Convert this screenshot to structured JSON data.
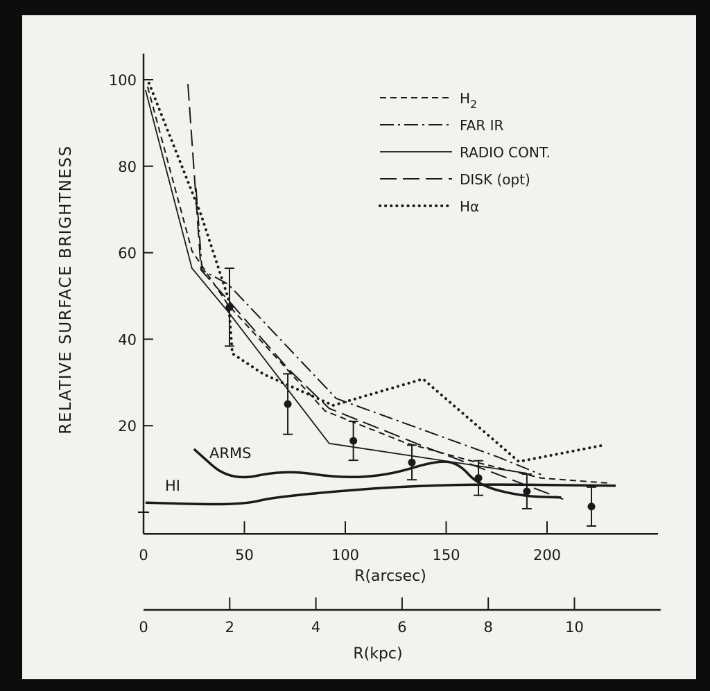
{
  "chart_data": {
    "type": "line",
    "title": "",
    "ylabel": "RELATIVE SURFACE BRIGHTNESS",
    "xlabel": "R(arcsec)",
    "x2label": "R(kpc)",
    "xlim": [
      0,
      255
    ],
    "ylim": [
      -5,
      106
    ],
    "x2lim": [
      0,
      12
    ],
    "xticks": [
      0,
      50,
      100,
      150,
      200
    ],
    "x2ticks": [
      0,
      2,
      4,
      6,
      8,
      10
    ],
    "yticks": [
      20,
      40,
      60,
      80,
      100
    ],
    "grid": false,
    "legend_position": "top-right",
    "series": [
      {
        "name": "H",
        "name_sub": "2",
        "style": "short-dash",
        "points": [
          [
            2,
            98.4
          ],
          [
            24,
            60.4
          ],
          [
            42,
            47.9
          ],
          [
            90,
            23.4
          ],
          [
            130,
            16
          ],
          [
            166,
            11.4
          ],
          [
            197,
            7.9
          ],
          [
            231,
            6.7
          ]
        ]
      },
      {
        "name": "FAR IR",
        "style": "dash-dot",
        "points": [
          [
            26,
            75
          ],
          [
            29,
            56
          ],
          [
            42,
            52.7
          ],
          [
            95.5,
            26.3
          ],
          [
            176,
            12.7
          ],
          [
            197,
            8.7
          ]
        ]
      },
      {
        "name": "RADIO CONT.",
        "style": "solid",
        "points": [
          [
            1,
            97.6
          ],
          [
            24,
            56.4
          ],
          [
            42,
            46.3
          ],
          [
            92,
            15.9
          ],
          [
            190,
            9.0
          ]
        ]
      },
      {
        "name": "DISK (opt)",
        "style": "long-dash",
        "points": [
          [
            22,
            99
          ],
          [
            28.5,
            56
          ],
          [
            42,
            49
          ],
          [
            72,
            33
          ],
          [
            92,
            24
          ],
          [
            140,
            15
          ],
          [
            208,
            3
          ]
        ]
      },
      {
        "name": "Hα",
        "style": "dotted",
        "points": [
          [
            2.7,
            99.2
          ],
          [
            28.5,
            68.8
          ],
          [
            42,
            49.5
          ],
          [
            44,
            36.7
          ],
          [
            59.5,
            31.9
          ],
          [
            94,
            24.7
          ],
          [
            138.5,
            30.8
          ],
          [
            186,
            11.7
          ],
          [
            228,
            15.5
          ]
        ]
      }
    ],
    "curves": [
      {
        "name": "ARMS",
        "points": [
          [
            25,
            14.6
          ],
          [
            43,
            7.1
          ],
          [
            70,
            9.8
          ],
          [
            97,
            7.9
          ],
          [
            121,
            8.5
          ],
          [
            145,
            11.9
          ],
          [
            156,
            11.4
          ],
          [
            166,
            6.2
          ],
          [
            187,
            3.7
          ],
          [
            207,
            3.4
          ]
        ]
      },
      {
        "name": "HI",
        "points": [
          [
            1,
            2.2
          ],
          [
            48.5,
            1.6
          ],
          [
            66,
            3.7
          ],
          [
            144,
            6.6
          ],
          [
            234,
            6.1
          ]
        ]
      }
    ],
    "data_points": [
      {
        "x": 42.6,
        "y": 47.4,
        "err": 9
      },
      {
        "x": 71.5,
        "y": 25,
        "err": 7
      },
      {
        "x": 104,
        "y": 16.5,
        "err": 4.5
      },
      {
        "x": 133,
        "y": 11.5,
        "err": 4
      },
      {
        "x": 166,
        "y": 7.9,
        "err": 4
      },
      {
        "x": 190,
        "y": 4.8,
        "err": 4
      },
      {
        "x": 222,
        "y": 1.3,
        "err": 4.5
      }
    ]
  }
}
